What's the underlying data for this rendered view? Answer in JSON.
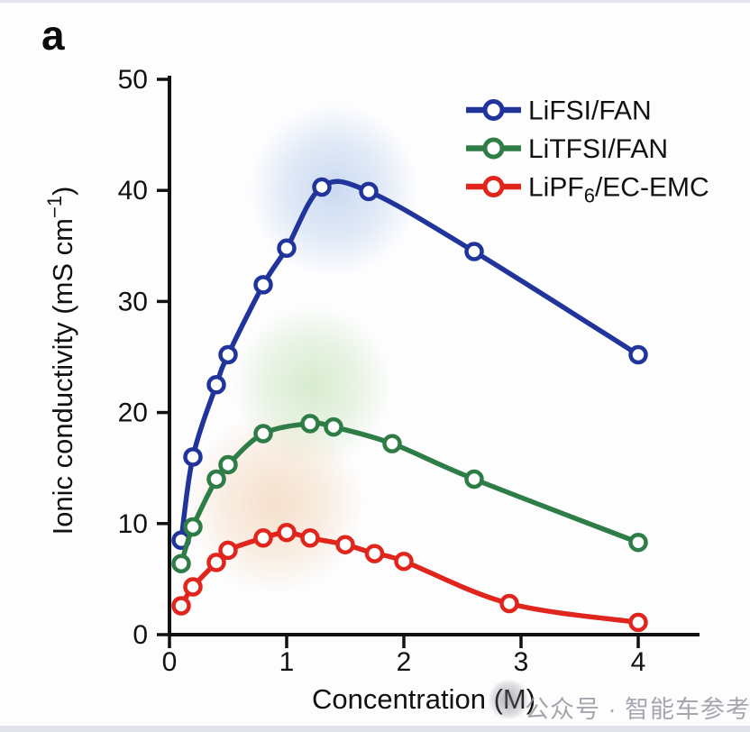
{
  "panel": {
    "label": "a"
  },
  "watermark": {
    "text": "公众号 · 智能车参考",
    "logo": "gray-circle-logo"
  },
  "colors": {
    "axis": "#111111",
    "background": "#fdfdfe",
    "lifsi_blue": "#20349b",
    "litfsi_green": "#2e7d46",
    "lipf6_red": "#e0251c",
    "highlight_blue": "#a9c2e8",
    "highlight_green": "#bfdfb0",
    "highlight_orange": "#f0cdaa",
    "watermark_gray": "#93939e"
  },
  "chart_data": {
    "type": "line",
    "title": "",
    "xlabel": "Concentration (M)",
    "ylabel": "Ionic conductivity (mS cm⁻¹)",
    "ylabel_parts": {
      "pre": "Ionic conductivity (mS cm",
      "sup": "−1",
      "post": ")"
    },
    "xlim": [
      0,
      4.5
    ],
    "ylim": [
      0,
      50
    ],
    "xticks": [
      0,
      1,
      2,
      3,
      4
    ],
    "yticks": [
      0,
      10,
      20,
      30,
      40,
      50
    ],
    "grid": false,
    "legend_position": "top-right",
    "marker": "open-circle",
    "series": [
      {
        "name": "LiFSI/FAN",
        "label_parts": {
          "pre": "LiFSI/FAN",
          "sub": "",
          "post": ""
        },
        "color": "#20349b",
        "x": [
          0.1,
          0.2,
          0.4,
          0.5,
          0.8,
          1.0,
          1.3,
          1.7,
          2.6,
          4.0
        ],
        "y": [
          8.5,
          16.0,
          22.5,
          25.2,
          31.5,
          34.8,
          40.3,
          39.9,
          34.5,
          25.2
        ]
      },
      {
        "name": "LiTFSI/FAN",
        "label_parts": {
          "pre": "LiTFSI/FAN",
          "sub": "",
          "post": ""
        },
        "color": "#2e7d46",
        "x": [
          0.1,
          0.2,
          0.4,
          0.5,
          0.8,
          1.2,
          1.4,
          1.9,
          2.6,
          4.0
        ],
        "y": [
          6.4,
          9.7,
          14.0,
          15.3,
          18.1,
          19.0,
          18.7,
          17.2,
          14.0,
          8.3
        ]
      },
      {
        "name": "LiPF6/EC-EMC",
        "label_parts": {
          "pre": "LiPF",
          "sub": "6",
          "post": "/EC-EMC"
        },
        "color": "#e0251c",
        "x": [
          0.1,
          0.2,
          0.4,
          0.5,
          0.8,
          1.0,
          1.2,
          1.5,
          1.75,
          2.0,
          2.9,
          4.0
        ],
        "y": [
          2.6,
          4.3,
          6.5,
          7.6,
          8.7,
          9.2,
          8.7,
          8.1,
          7.3,
          6.6,
          2.8,
          1.1
        ]
      }
    ],
    "highlights": [
      {
        "name": "blue-glow",
        "color": "#a9c2e8",
        "cx": 1.4,
        "cy": 40.0,
        "r_m": 0.72,
        "r_u": 7.8
      },
      {
        "name": "green-glow",
        "color": "#bfdfb0",
        "cx": 1.22,
        "cy": 22.4,
        "r_m": 0.68,
        "r_u": 7.3
      },
      {
        "name": "orange-glow",
        "color": "#f0cdaa",
        "cx": 0.9,
        "cy": 11.8,
        "r_m": 0.76,
        "r_u": 8.2
      }
    ]
  }
}
